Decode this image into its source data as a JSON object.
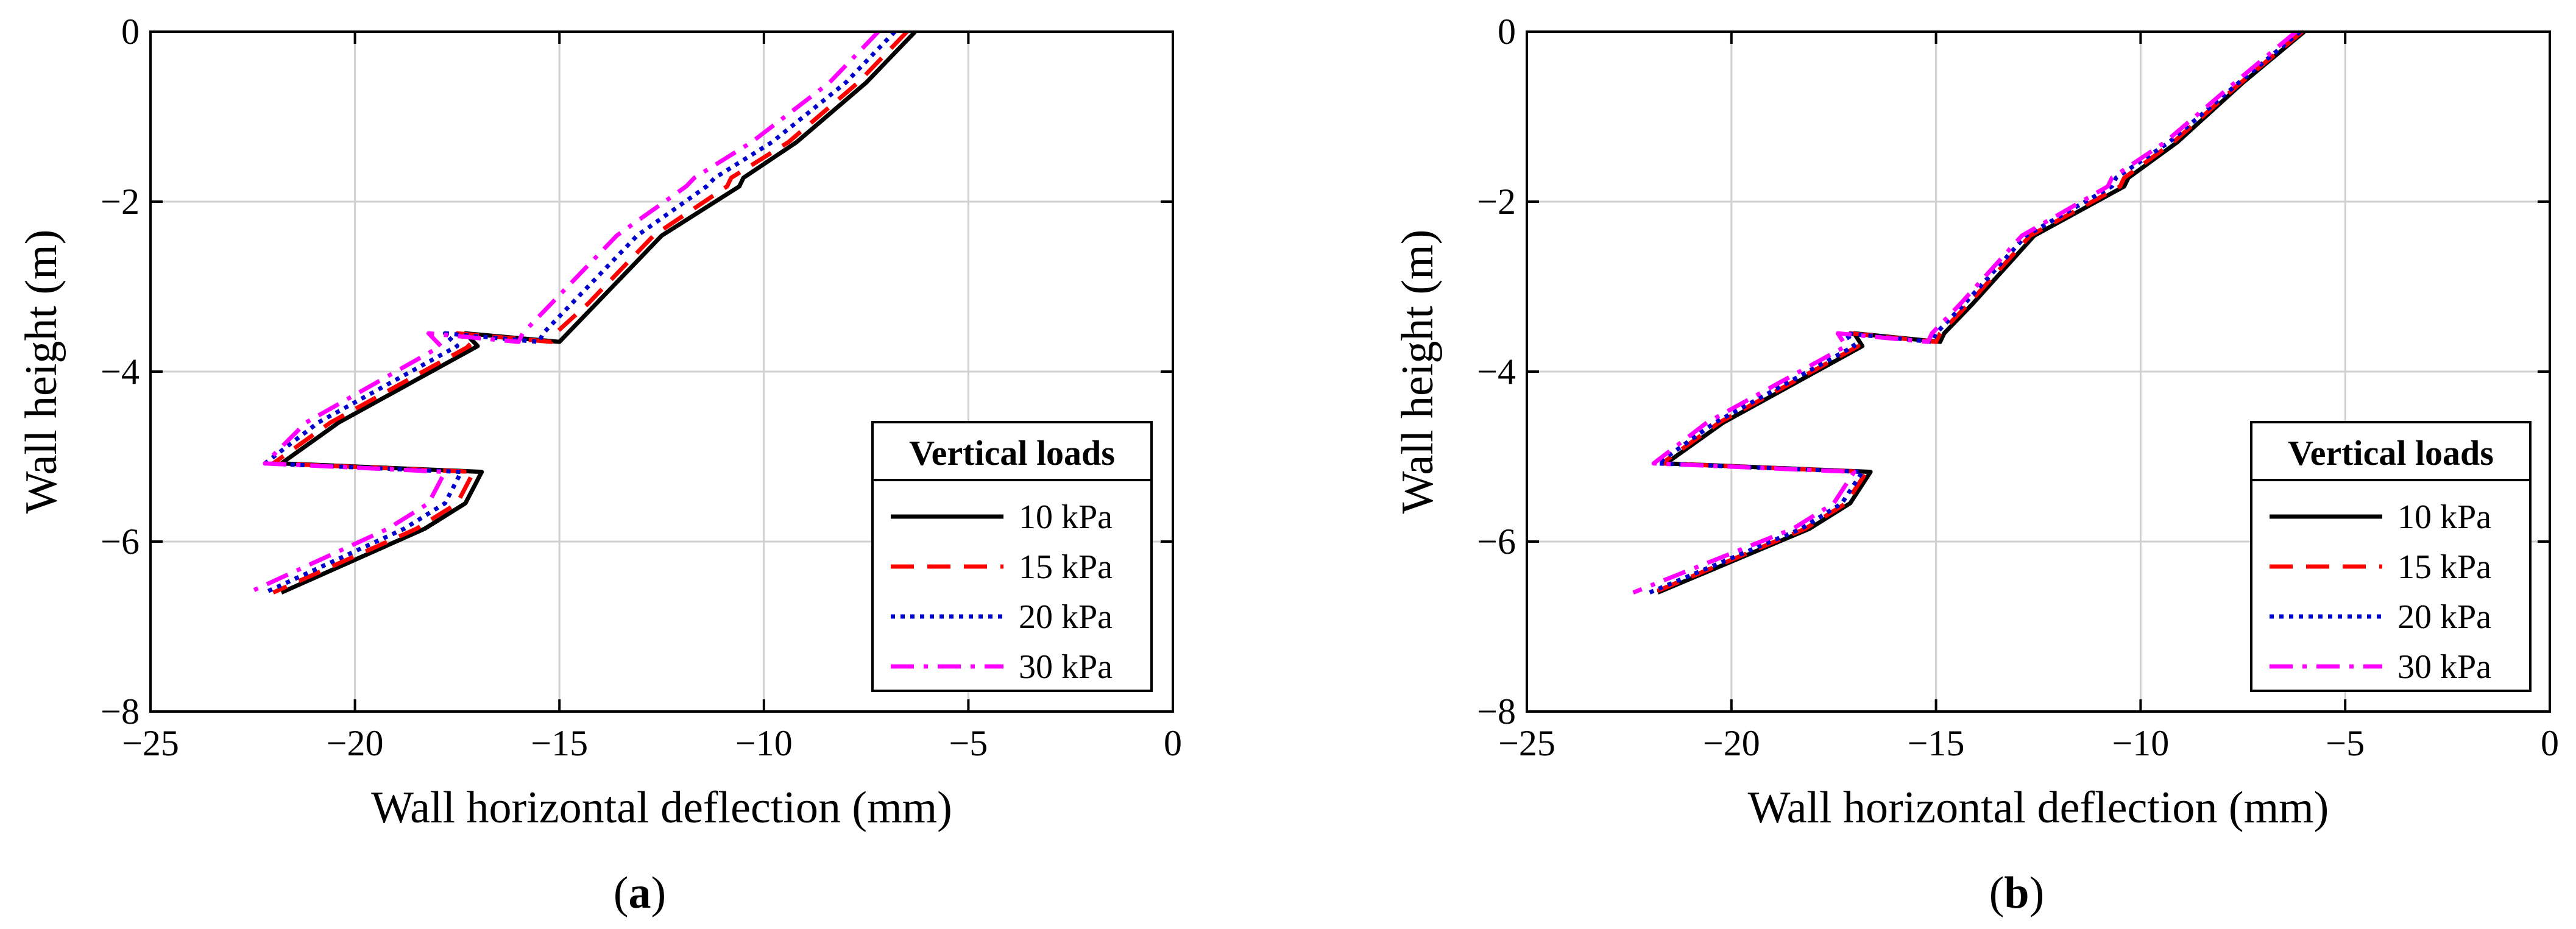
{
  "panels": [
    {
      "id": "a",
      "label_open": "(",
      "label_letter": "a",
      "label_close": ")"
    },
    {
      "id": "b",
      "label_open": "(",
      "label_letter": "b",
      "label_close": ")"
    }
  ],
  "chart_data": [
    {
      "type": "line",
      "xlabel": "Wall horizontal deflection (mm)",
      "ylabel": "Wall height (m)",
      "xlim": [
        -25,
        0
      ],
      "ylim": [
        -8,
        0
      ],
      "xticks": [
        -25,
        -20,
        -15,
        -10,
        -5,
        0
      ],
      "yticks": [
        -8,
        -6,
        -4,
        -2,
        0
      ],
      "xtick_labels": [
        "−25",
        "−20",
        "−15",
        "−10",
        "−5",
        "0"
      ],
      "ytick_labels": [
        "−8",
        "−6",
        "−4",
        "−2",
        "0"
      ],
      "grid": true,
      "legend": {
        "title": "Vertical loads",
        "placement": "bottom-right"
      },
      "series": [
        {
          "name": "10 kPa",
          "color": "#000000",
          "dash": "solid",
          "x": [
            -6.3,
            -7.5,
            -9.2,
            -10.5,
            -10.6,
            -12.5,
            -14.1,
            -14.8,
            -15.0,
            -17.3,
            -17.0,
            -20.4,
            -21.8,
            -16.9,
            -17.3,
            -18.3,
            -21.8
          ],
          "y": [
            0,
            -0.6,
            -1.3,
            -1.72,
            -1.82,
            -2.4,
            -3.2,
            -3.55,
            -3.65,
            -3.55,
            -3.7,
            -4.6,
            -5.08,
            -5.18,
            -5.55,
            -5.85,
            -6.6
          ]
        },
        {
          "name": "15 kPa",
          "color": "#ff0000",
          "dash": "dashed",
          "x": [
            -6.5,
            -7.7,
            -9.4,
            -10.8,
            -10.9,
            -12.7,
            -14.3,
            -15.1,
            -15.2,
            -17.5,
            -17.2,
            -20.6,
            -22.0,
            -17.1,
            -17.5,
            -18.5,
            -22.0
          ],
          "y": [
            0,
            -0.6,
            -1.3,
            -1.72,
            -1.82,
            -2.4,
            -3.2,
            -3.55,
            -3.65,
            -3.55,
            -3.7,
            -4.6,
            -5.08,
            -5.18,
            -5.55,
            -5.85,
            -6.6
          ]
        },
        {
          "name": "20 kPa",
          "color": "#0000cc",
          "dash": "dotted",
          "x": [
            -6.8,
            -8.0,
            -9.8,
            -11.2,
            -11.4,
            -13.1,
            -14.7,
            -15.4,
            -15.5,
            -17.8,
            -17.5,
            -20.9,
            -22.2,
            -17.4,
            -17.8,
            -18.8,
            -22.2
          ],
          "y": [
            0,
            -0.6,
            -1.3,
            -1.72,
            -1.82,
            -2.4,
            -3.2,
            -3.55,
            -3.65,
            -3.55,
            -3.7,
            -4.6,
            -5.08,
            -5.18,
            -5.55,
            -5.85,
            -6.6
          ]
        },
        {
          "name": "30 kPa",
          "color": "#ff00ff",
          "dash": "dashdot",
          "x": [
            -7.2,
            -8.4,
            -10.3,
            -11.7,
            -11.9,
            -13.6,
            -15.2,
            -15.9,
            -16.0,
            -18.2,
            -17.9,
            -21.2,
            -22.2,
            -17.8,
            -18.2,
            -19.2,
            -22.6
          ],
          "y": [
            0,
            -0.6,
            -1.3,
            -1.72,
            -1.82,
            -2.4,
            -3.2,
            -3.55,
            -3.65,
            -3.55,
            -3.7,
            -4.6,
            -5.08,
            -5.18,
            -5.55,
            -5.85,
            -6.6
          ]
        }
      ]
    },
    {
      "type": "line",
      "xlabel": "Wall horizontal deflection (mm)",
      "ylabel": "Wall height (m)",
      "xlim": [
        -25,
        0
      ],
      "ylim": [
        -8,
        0
      ],
      "xticks": [
        -25,
        -20,
        -15,
        -10,
        -5,
        0
      ],
      "yticks": [
        -8,
        -6,
        -4,
        -2,
        0
      ],
      "xtick_labels": [
        "−25",
        "−20",
        "−15",
        "−10",
        "−5",
        "0"
      ],
      "ytick_labels": [
        "−8",
        "−6",
        "−4",
        "−2",
        "0"
      ],
      "grid": true,
      "legend": {
        "title": "Vertical loads",
        "placement": "bottom-right"
      },
      "series": [
        {
          "name": "10 kPa",
          "color": "#000000",
          "dash": "solid",
          "x": [
            -6.0,
            -7.5,
            -9.1,
            -10.3,
            -10.4,
            -12.6,
            -14.1,
            -14.8,
            -14.9,
            -17.0,
            -16.8,
            -20.2,
            -21.6,
            -16.6,
            -17.1,
            -18.1,
            -21.8
          ],
          "y": [
            0,
            -0.6,
            -1.3,
            -1.72,
            -1.82,
            -2.4,
            -3.2,
            -3.55,
            -3.65,
            -3.55,
            -3.7,
            -4.6,
            -5.08,
            -5.18,
            -5.55,
            -5.85,
            -6.6
          ]
        },
        {
          "name": "15 kPa",
          "color": "#ff0000",
          "dash": "dashed",
          "x": [
            -6.05,
            -7.55,
            -9.2,
            -10.4,
            -10.5,
            -12.7,
            -14.2,
            -14.9,
            -15.0,
            -17.1,
            -16.9,
            -20.3,
            -21.7,
            -16.7,
            -17.2,
            -18.2,
            -21.9
          ],
          "y": [
            0,
            -0.6,
            -1.3,
            -1.72,
            -1.82,
            -2.4,
            -3.2,
            -3.55,
            -3.65,
            -3.55,
            -3.7,
            -4.6,
            -5.08,
            -5.18,
            -5.55,
            -5.85,
            -6.6
          ]
        },
        {
          "name": "20 kPa",
          "color": "#0000cc",
          "dash": "dotted",
          "x": [
            -6.1,
            -7.6,
            -9.3,
            -10.6,
            -10.7,
            -12.8,
            -14.3,
            -15.0,
            -15.1,
            -17.2,
            -17.0,
            -20.4,
            -21.8,
            -16.8,
            -17.3,
            -18.3,
            -22.0
          ],
          "y": [
            0,
            -0.6,
            -1.3,
            -1.72,
            -1.82,
            -2.4,
            -3.2,
            -3.55,
            -3.65,
            -3.55,
            -3.7,
            -4.6,
            -5.08,
            -5.18,
            -5.55,
            -5.85,
            -6.6
          ]
        },
        {
          "name": "30 kPa",
          "color": "#ff00ff",
          "dash": "dashdot",
          "x": [
            -6.2,
            -7.7,
            -9.4,
            -10.7,
            -10.8,
            -12.9,
            -14.4,
            -15.1,
            -15.2,
            -17.4,
            -17.2,
            -20.6,
            -21.9,
            -17.0,
            -17.5,
            -18.5,
            -22.4
          ],
          "y": [
            0,
            -0.6,
            -1.3,
            -1.72,
            -1.82,
            -2.4,
            -3.2,
            -3.55,
            -3.65,
            -3.55,
            -3.7,
            -4.6,
            -5.08,
            -5.18,
            -5.55,
            -5.85,
            -6.6
          ]
        }
      ]
    }
  ]
}
